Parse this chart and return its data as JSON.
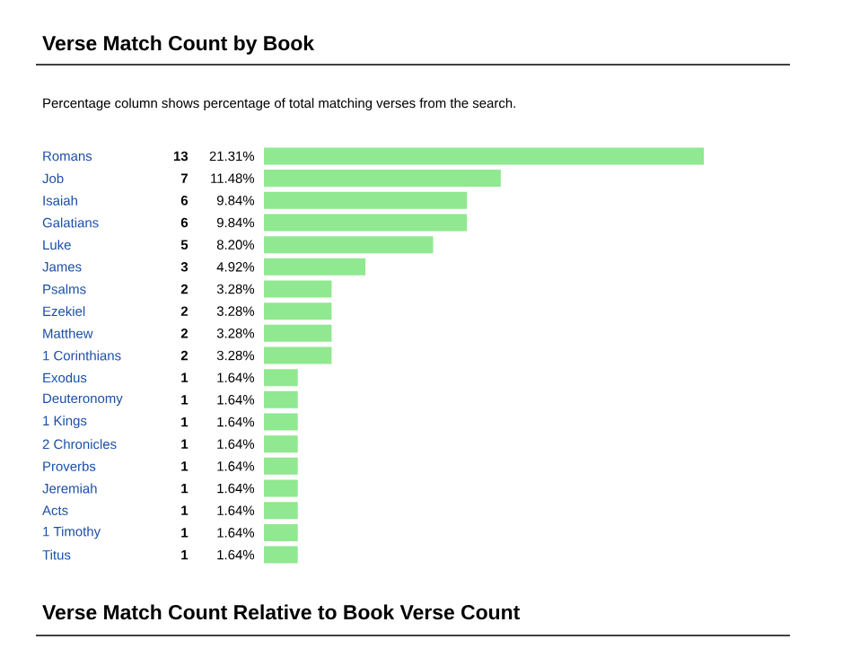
{
  "chart_data": {
    "type": "bar",
    "orientation": "horizontal",
    "title": "Verse Match Count by Book",
    "subtitle": "Percentage column shows percentage of total matching verses from the search.",
    "categories": [
      "Romans",
      "Job",
      "Isaiah",
      "Galatians",
      "Luke",
      "James",
      "Psalms",
      "Ezekiel",
      "Matthew",
      "1 Corinthians",
      "Exodus",
      "Deuteronomy",
      "1 Kings",
      "2 Chronicles",
      "Proverbs",
      "Jeremiah",
      "Acts",
      "1 Timothy",
      "Titus"
    ],
    "values": [
      13,
      7,
      6,
      6,
      5,
      3,
      2,
      2,
      2,
      2,
      1,
      1,
      1,
      1,
      1,
      1,
      1,
      1,
      1
    ],
    "data_labels": true,
    "color": "#90e890",
    "annotations": [
      "21.31%",
      "11.48%",
      "9.84%",
      "9.84%",
      "8.20%",
      "4.92%",
      "3.28%",
      "3.28%",
      "3.28%",
      "3.28%",
      "1.64%",
      "1.64%",
      "1.64%",
      "1.64%",
      "1.64%",
      "1.64%",
      "1.64%",
      "1.64%",
      "1.64%",
      "Verse Match Count Relative to Book Verse Count"
    ]
  }
}
